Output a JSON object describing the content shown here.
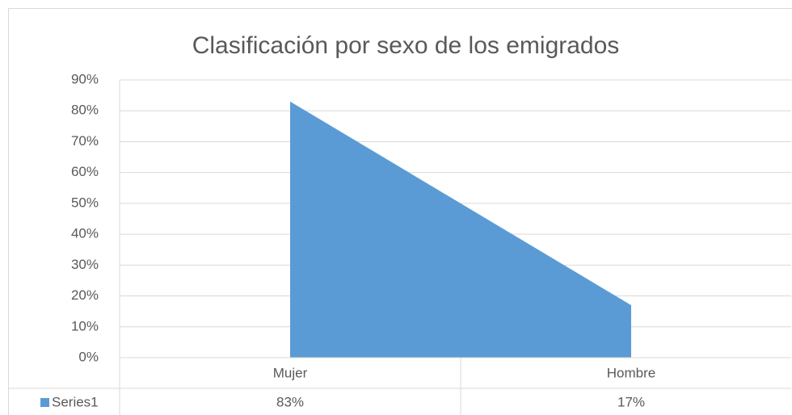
{
  "chart_data": {
    "type": "area",
    "title": "Clasificación por sexo de los emigrados",
    "categories": [
      "Mujer",
      "Hombre"
    ],
    "series": [
      {
        "name": "Series1",
        "color": "#5b9bd5",
        "values": [
          83,
          17
        ],
        "value_labels": [
          "83%",
          "17%"
        ]
      }
    ],
    "ylim": [
      0,
      90
    ],
    "yticks": [
      {
        "value": 0,
        "label": "0%"
      },
      {
        "value": 10,
        "label": "10%"
      },
      {
        "value": 20,
        "label": "20%"
      },
      {
        "value": 30,
        "label": "30%"
      },
      {
        "value": 40,
        "label": "40%"
      },
      {
        "value": 50,
        "label": "50%"
      },
      {
        "value": 60,
        "label": "60%"
      },
      {
        "value": 70,
        "label": "70%"
      },
      {
        "value": 80,
        "label": "80%"
      },
      {
        "value": 90,
        "label": "90%"
      }
    ],
    "grid": true,
    "data_table": true
  }
}
